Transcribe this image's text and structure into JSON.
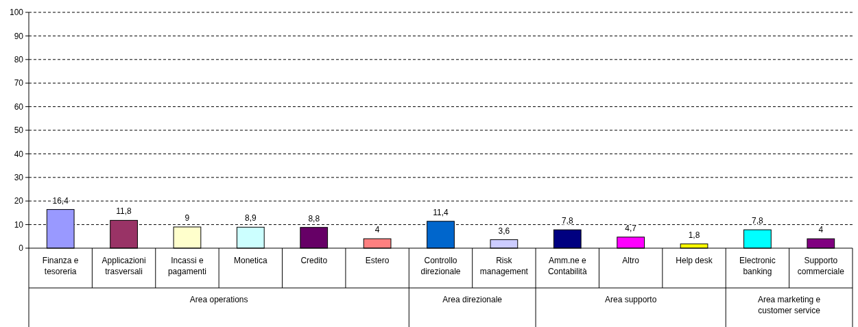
{
  "chart_data": {
    "type": "bar",
    "categories": [
      "Finanza e tesoreria",
      "Applicazioni trasversali",
      "Incassi e pagamenti",
      "Monetica",
      "Credito",
      "Estero",
      "Controllo direzionale",
      "Risk management",
      "Amm.ne e Contabilità",
      "Altro",
      "Help desk",
      "Electronic banking",
      "Supporto commerciale"
    ],
    "values": [
      16.4,
      11.8,
      9,
      8.9,
      8.8,
      4,
      11.4,
      3.6,
      7.8,
      4.7,
      1.8,
      7.8,
      4
    ],
    "colors": [
      "#9999ff",
      "#993366",
      "#ffffcc",
      "#ccffff",
      "#660066",
      "#ff8080",
      "#0066cc",
      "#ccccff",
      "#000080",
      "#ff00ff",
      "#ffff00",
      "#00ffff",
      "#800080"
    ],
    "value_labels": [
      "16,4",
      "11,8",
      "9",
      "8,9",
      "8,8",
      "4",
      "11,4",
      "3,6",
      "7,8",
      "4,7",
      "1,8",
      "7,8",
      "4"
    ],
    "ylim": [
      0,
      100
    ],
    "yticks": [
      0,
      10,
      20,
      30,
      40,
      50,
      60,
      70,
      80,
      90,
      100
    ],
    "grid": "y",
    "annotations": [
      "Area operations",
      "Area direzionale",
      "Area supporto",
      "Area marketing e customer service"
    ]
  }
}
